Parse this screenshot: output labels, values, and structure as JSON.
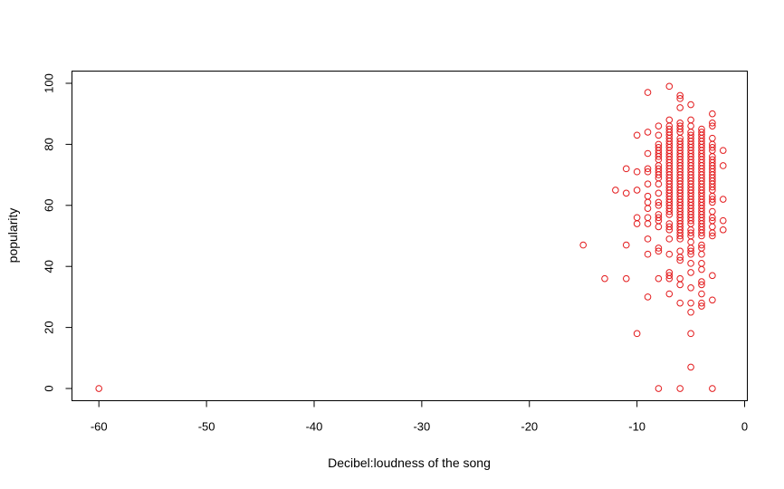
{
  "chart_data": {
    "type": "scatter",
    "title": "",
    "xlabel": "Decibel:loudness of the song",
    "ylabel": "popularity",
    "xlim": [
      -62.5,
      0.25
    ],
    "ylim": [
      -4,
      104
    ],
    "x_ticks": [
      -60,
      -50,
      -40,
      -30,
      -20,
      -10,
      0
    ],
    "y_ticks": [
      0,
      20,
      40,
      60,
      80,
      100
    ],
    "grid": false,
    "legend": "none",
    "marker": "open-circle",
    "point_color": "#e31a1c",
    "points": [
      [
        -60,
        0
      ],
      [
        -15,
        47
      ],
      [
        -13,
        36
      ],
      [
        -12,
        65
      ],
      [
        -11,
        72
      ],
      [
        -11,
        64
      ],
      [
        -11,
        47
      ],
      [
        -11,
        36
      ],
      [
        -10,
        83
      ],
      [
        -10,
        71
      ],
      [
        -10,
        65
      ],
      [
        -10,
        56
      ],
      [
        -10,
        54
      ],
      [
        -10,
        18
      ],
      [
        -9,
        97
      ],
      [
        -9,
        84
      ],
      [
        -9,
        77
      ],
      [
        -9,
        72
      ],
      [
        -9,
        71
      ],
      [
        -9,
        67
      ],
      [
        -9,
        63
      ],
      [
        -9,
        61
      ],
      [
        -9,
        59
      ],
      [
        -9,
        56
      ],
      [
        -9,
        54
      ],
      [
        -9,
        49
      ],
      [
        -9,
        44
      ],
      [
        -9,
        30
      ],
      [
        -8,
        86
      ],
      [
        -8,
        83
      ],
      [
        -8,
        80
      ],
      [
        -8,
        79
      ],
      [
        -8,
        78
      ],
      [
        -8,
        77
      ],
      [
        -8,
        76
      ],
      [
        -8,
        75
      ],
      [
        -8,
        73
      ],
      [
        -8,
        72
      ],
      [
        -8,
        71
      ],
      [
        -8,
        70
      ],
      [
        -8,
        69
      ],
      [
        -8,
        67
      ],
      [
        -8,
        64
      ],
      [
        -8,
        61
      ],
      [
        -8,
        60
      ],
      [
        -8,
        57
      ],
      [
        -8,
        56
      ],
      [
        -8,
        55
      ],
      [
        -8,
        53
      ],
      [
        -8,
        46
      ],
      [
        -8,
        45
      ],
      [
        -8,
        36
      ],
      [
        -8,
        0
      ],
      [
        -7,
        99
      ],
      [
        -7,
        88
      ],
      [
        -7,
        86
      ],
      [
        -7,
        85
      ],
      [
        -7,
        84
      ],
      [
        -7,
        83
      ],
      [
        -7,
        82
      ],
      [
        -7,
        81
      ],
      [
        -7,
        80
      ],
      [
        -7,
        79
      ],
      [
        -7,
        78
      ],
      [
        -7,
        77
      ],
      [
        -7,
        76
      ],
      [
        -7,
        75
      ],
      [
        -7,
        74
      ],
      [
        -7,
        73
      ],
      [
        -7,
        72
      ],
      [
        -7,
        71
      ],
      [
        -7,
        70
      ],
      [
        -7,
        69
      ],
      [
        -7,
        68
      ],
      [
        -7,
        67
      ],
      [
        -7,
        66
      ],
      [
        -7,
        65
      ],
      [
        -7,
        64
      ],
      [
        -7,
        63
      ],
      [
        -7,
        62
      ],
      [
        -7,
        61
      ],
      [
        -7,
        60
      ],
      [
        -7,
        59
      ],
      [
        -7,
        58
      ],
      [
        -7,
        57
      ],
      [
        -7,
        54
      ],
      [
        -7,
        53
      ],
      [
        -7,
        52
      ],
      [
        -7,
        49
      ],
      [
        -7,
        44
      ],
      [
        -7,
        38
      ],
      [
        -7,
        37
      ],
      [
        -7,
        36
      ],
      [
        -7,
        31
      ],
      [
        -6,
        96
      ],
      [
        -6,
        95
      ],
      [
        -6,
        92
      ],
      [
        -6,
        87
      ],
      [
        -6,
        86
      ],
      [
        -6,
        85
      ],
      [
        -6,
        84
      ],
      [
        -6,
        82
      ],
      [
        -6,
        81
      ],
      [
        -6,
        80
      ],
      [
        -6,
        79
      ],
      [
        -6,
        78
      ],
      [
        -6,
        77
      ],
      [
        -6,
        76
      ],
      [
        -6,
        75
      ],
      [
        -6,
        74
      ],
      [
        -6,
        73
      ],
      [
        -6,
        72
      ],
      [
        -6,
        71
      ],
      [
        -6,
        70
      ],
      [
        -6,
        69
      ],
      [
        -6,
        68
      ],
      [
        -6,
        67
      ],
      [
        -6,
        66
      ],
      [
        -6,
        65
      ],
      [
        -6,
        64
      ],
      [
        -6,
        63
      ],
      [
        -6,
        62
      ],
      [
        -6,
        61
      ],
      [
        -6,
        60
      ],
      [
        -6,
        59
      ],
      [
        -6,
        58
      ],
      [
        -6,
        57
      ],
      [
        -6,
        56
      ],
      [
        -6,
        55
      ],
      [
        -6,
        54
      ],
      [
        -6,
        53
      ],
      [
        -6,
        52
      ],
      [
        -6,
        51
      ],
      [
        -6,
        50
      ],
      [
        -6,
        49
      ],
      [
        -6,
        45
      ],
      [
        -6,
        43
      ],
      [
        -6,
        42
      ],
      [
        -6,
        36
      ],
      [
        -6,
        34
      ],
      [
        -6,
        28
      ],
      [
        -6,
        0
      ],
      [
        -5,
        93
      ],
      [
        -5,
        88
      ],
      [
        -5,
        86
      ],
      [
        -5,
        84
      ],
      [
        -5,
        83
      ],
      [
        -5,
        82
      ],
      [
        -5,
        81
      ],
      [
        -5,
        80
      ],
      [
        -5,
        79
      ],
      [
        -5,
        78
      ],
      [
        -5,
        77
      ],
      [
        -5,
        76
      ],
      [
        -5,
        75
      ],
      [
        -5,
        74
      ],
      [
        -5,
        73
      ],
      [
        -5,
        72
      ],
      [
        -5,
        71
      ],
      [
        -5,
        70
      ],
      [
        -5,
        69
      ],
      [
        -5,
        68
      ],
      [
        -5,
        67
      ],
      [
        -5,
        66
      ],
      [
        -5,
        65
      ],
      [
        -5,
        64
      ],
      [
        -5,
        63
      ],
      [
        -5,
        62
      ],
      [
        -5,
        61
      ],
      [
        -5,
        60
      ],
      [
        -5,
        59
      ],
      [
        -5,
        58
      ],
      [
        -5,
        57
      ],
      [
        -5,
        56
      ],
      [
        -5,
        55
      ],
      [
        -5,
        54
      ],
      [
        -5,
        52
      ],
      [
        -5,
        51
      ],
      [
        -5,
        50
      ],
      [
        -5,
        48
      ],
      [
        -5,
        46
      ],
      [
        -5,
        45
      ],
      [
        -5,
        44
      ],
      [
        -5,
        41
      ],
      [
        -5,
        38
      ],
      [
        -5,
        33
      ],
      [
        -5,
        28
      ],
      [
        -5,
        25
      ],
      [
        -5,
        18
      ],
      [
        -5,
        7
      ],
      [
        -4,
        85
      ],
      [
        -4,
        84
      ],
      [
        -4,
        83
      ],
      [
        -4,
        82
      ],
      [
        -4,
        81
      ],
      [
        -4,
        80
      ],
      [
        -4,
        79
      ],
      [
        -4,
        78
      ],
      [
        -4,
        77
      ],
      [
        -4,
        76
      ],
      [
        -4,
        75
      ],
      [
        -4,
        74
      ],
      [
        -4,
        73
      ],
      [
        -4,
        72
      ],
      [
        -4,
        71
      ],
      [
        -4,
        70
      ],
      [
        -4,
        69
      ],
      [
        -4,
        68
      ],
      [
        -4,
        67
      ],
      [
        -4,
        66
      ],
      [
        -4,
        65
      ],
      [
        -4,
        64
      ],
      [
        -4,
        63
      ],
      [
        -4,
        62
      ],
      [
        -4,
        61
      ],
      [
        -4,
        60
      ],
      [
        -4,
        59
      ],
      [
        -4,
        58
      ],
      [
        -4,
        57
      ],
      [
        -4,
        56
      ],
      [
        -4,
        55
      ],
      [
        -4,
        54
      ],
      [
        -4,
        53
      ],
      [
        -4,
        52
      ],
      [
        -4,
        51
      ],
      [
        -4,
        50
      ],
      [
        -4,
        47
      ],
      [
        -4,
        46
      ],
      [
        -4,
        44
      ],
      [
        -4,
        41
      ],
      [
        -4,
        39
      ],
      [
        -4,
        35
      ],
      [
        -4,
        34
      ],
      [
        -4,
        31
      ],
      [
        -4,
        28
      ],
      [
        -4,
        27
      ],
      [
        -3,
        90
      ],
      [
        -3,
        87
      ],
      [
        -3,
        86
      ],
      [
        -3,
        82
      ],
      [
        -3,
        80
      ],
      [
        -3,
        79
      ],
      [
        -3,
        78
      ],
      [
        -3,
        76
      ],
      [
        -3,
        75
      ],
      [
        -3,
        74
      ],
      [
        -3,
        73
      ],
      [
        -3,
        72
      ],
      [
        -3,
        71
      ],
      [
        -3,
        70
      ],
      [
        -3,
        69
      ],
      [
        -3,
        68
      ],
      [
        -3,
        67
      ],
      [
        -3,
        66
      ],
      [
        -3,
        65
      ],
      [
        -3,
        63
      ],
      [
        -3,
        62
      ],
      [
        -3,
        61
      ],
      [
        -3,
        58
      ],
      [
        -3,
        56
      ],
      [
        -3,
        55
      ],
      [
        -3,
        53
      ],
      [
        -3,
        51
      ],
      [
        -3,
        50
      ],
      [
        -3,
        37
      ],
      [
        -3,
        29
      ],
      [
        -3,
        0
      ],
      [
        -2,
        78
      ],
      [
        -2,
        73
      ],
      [
        -2,
        62
      ],
      [
        -2,
        55
      ],
      [
        -2,
        52
      ]
    ]
  }
}
